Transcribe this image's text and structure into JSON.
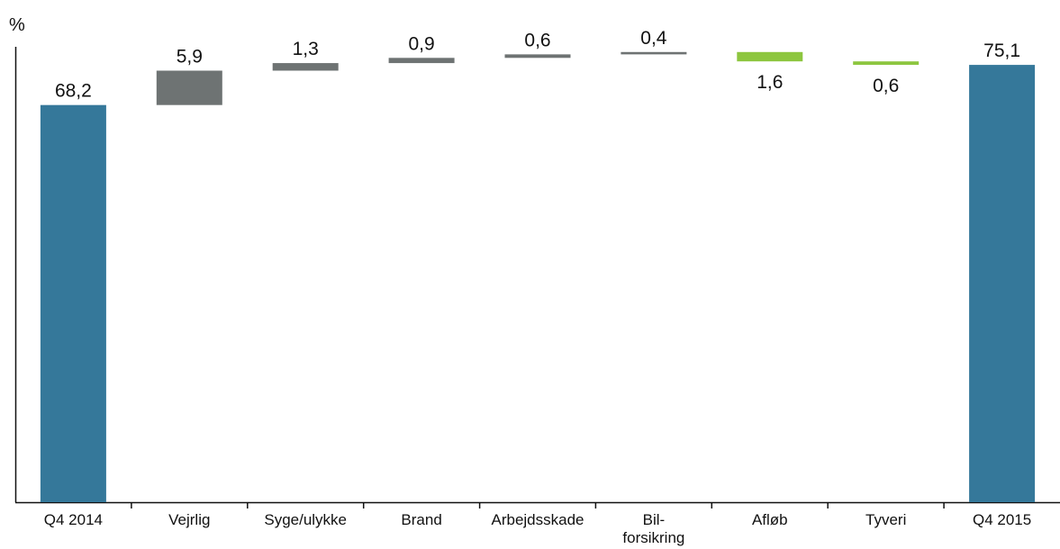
{
  "chart_data": {
    "type": "bar",
    "subtype": "waterfall",
    "ylabel": "%",
    "categories": [
      "Q4 2014",
      "Vejrlig",
      "Syge/ulykke",
      "Brand",
      "Arbejdsskade",
      "Bil-\nforsikring",
      "Afløb",
      "Tyveri",
      "Q4 2015"
    ],
    "kinds": [
      "total",
      "increase",
      "increase",
      "increase",
      "increase",
      "increase",
      "decrease",
      "decrease",
      "total"
    ],
    "values": [
      68.2,
      5.9,
      1.3,
      0.9,
      0.6,
      0.4,
      1.6,
      0.6,
      75.1
    ],
    "value_labels": [
      "68,2",
      "5,9",
      "1,3",
      "0,9",
      "0,6",
      "0,4",
      "1,6",
      "0,6",
      "75,1"
    ],
    "ylim": [
      0,
      78.2
    ],
    "grid": false,
    "legend": "none",
    "colors": {
      "total": "#35789a",
      "increase": "#6e7373",
      "decrease": "#8dc63f"
    }
  }
}
